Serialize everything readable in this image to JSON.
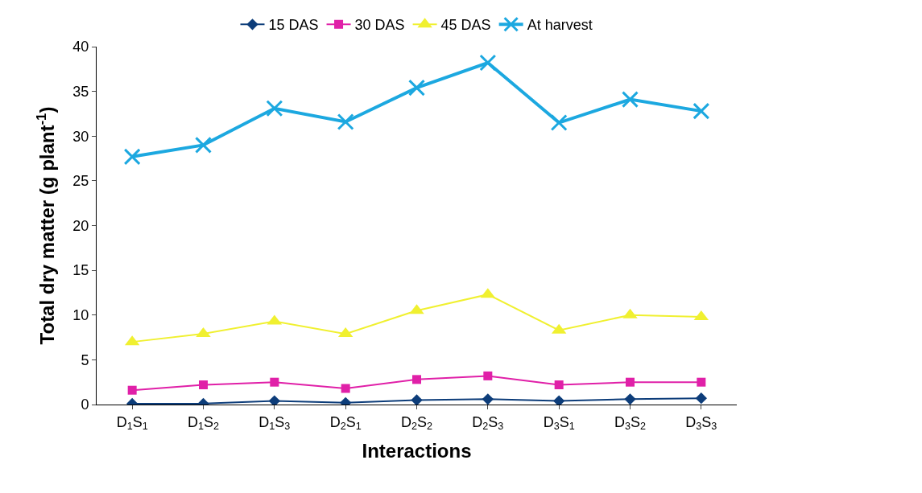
{
  "chart_data": {
    "type": "line",
    "xlabel": "Interactions",
    "ylabel": "Total dry matter (g plant$^{-1}$)",
    "categories": [
      "D$_{1}$S$_{1}$",
      "D$_{1}$S$_{2}$",
      "D$_{1}$S$_{3}$",
      "D$_{2}$S$_{1}$",
      "D$_{2}$S$_{2}$",
      "D$_{2}$S$_{3}$",
      "D$_{3}$S$_{1}$",
      "D$_{3}$S$_{2}$",
      "D$_{3}$S$_{3}$"
    ],
    "series": [
      {
        "name": "15 DAS",
        "color": "#0d3d7a",
        "marker": "diamond",
        "values": [
          0.1,
          0.1,
          0.4,
          0.2,
          0.5,
          0.6,
          0.4,
          0.6,
          0.7
        ]
      },
      {
        "name": "30 DAS",
        "color": "#e020a8",
        "marker": "square",
        "values": [
          1.6,
          2.2,
          2.5,
          1.8,
          2.8,
          3.2,
          2.2,
          2.5,
          2.5
        ]
      },
      {
        "name": "45 DAS",
        "color": "#f0f030",
        "marker": "triangle",
        "values": [
          7.0,
          7.9,
          9.3,
          7.9,
          10.5,
          12.3,
          8.3,
          10.0,
          9.8
        ]
      },
      {
        "name": "At harvest",
        "color": "#1ca8e0",
        "marker": "cross",
        "values": [
          27.7,
          29.0,
          33.1,
          31.6,
          35.4,
          38.2,
          31.5,
          34.1,
          32.8
        ]
      }
    ],
    "ylim": [
      0,
      40
    ],
    "yticks": [
      0,
      5,
      10,
      15,
      20,
      25,
      30,
      35,
      40
    ],
    "legend": "top"
  }
}
